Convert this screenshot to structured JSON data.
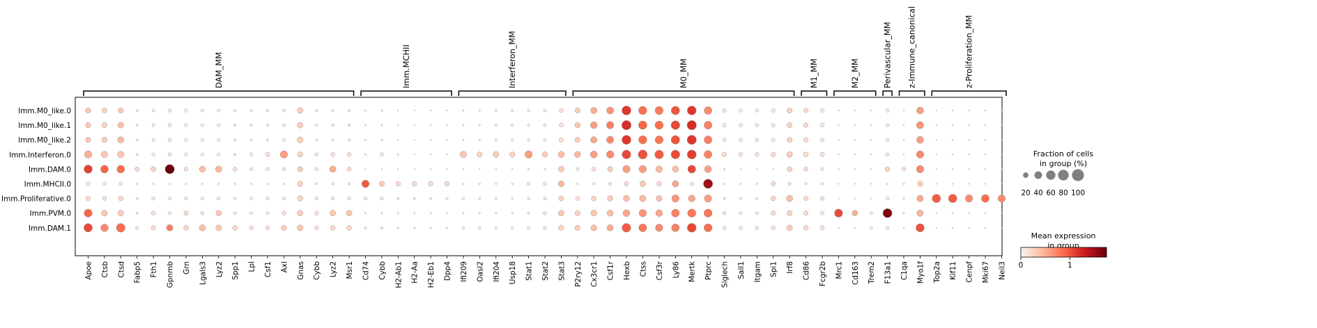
{
  "chart_data": {
    "type": "dotplot",
    "groups": [
      "Imm.M0_like.0",
      "Imm.M0_like.1",
      "Imm.M0_like.2",
      "Imm.Interferon.0",
      "Imm.DAM.0",
      "Imm.MHCII.0",
      "Imm.Proliferative.0",
      "Imm.PVM.0",
      "Imm.DAM.1"
    ],
    "genes": [
      "Apoe",
      "Ctsb",
      "Ctsd",
      "Fabp5",
      "Fth1",
      "Gpnmb",
      "Grn",
      "Lgals3",
      "Lyz2",
      "Spp1",
      "Lpl",
      "Csf1",
      "Axl",
      "Gnas",
      "Cybb",
      "Lyz2",
      "Msr1",
      "Cd74",
      "Cybb",
      "H2-Ab1",
      "H2-Aa",
      "H2-Eb1",
      "Dpp4",
      "Ifi209",
      "Oasl2",
      "Ifi204",
      "Usp18",
      "Stat1",
      "Stat2",
      "Stat3",
      "P2ry12",
      "Cx3cr1",
      "Csf1r",
      "Hexb",
      "Ctss",
      "Csf3r",
      "Ly86",
      "Mertk",
      "Ptprc",
      "Siglech",
      "Sall1",
      "Itgam",
      "Spi1",
      "Irf8",
      "Cd86",
      "Fcgr2b",
      "Mrc1",
      "Cd163",
      "Trem2",
      "F13a1",
      "C1qa",
      "Myo1f",
      "Top2a",
      "Kif11",
      "Cenpf",
      "Mki67",
      "Neil3"
    ],
    "gene_groups": [
      {
        "label": "DAM_MM",
        "start": 0,
        "end": 16
      },
      {
        "label": "Imm.MCHII",
        "start": 17,
        "end": 22
      },
      {
        "label": "Interferon_MM",
        "start": 23,
        "end": 29
      },
      {
        "label": "M0_MM",
        "start": 30,
        "end": 43
      },
      {
        "label": "M1_MM",
        "start": 44,
        "end": 45
      },
      {
        "label": "M2_MM",
        "start": 46,
        "end": 48
      },
      {
        "label": "Perivascular_MM",
        "start": 49,
        "end": 49
      },
      {
        "label": "z-Immune_canonical",
        "start": 50,
        "end": 51
      },
      {
        "label": "z-Proliferation_MM",
        "start": 52,
        "end": 56
      }
    ],
    "size_values": [
      [
        20,
        18,
        20,
        4,
        6,
        8,
        8,
        6,
        6,
        4,
        4,
        4,
        6,
        24,
        4,
        4,
        4,
        2,
        2,
        1,
        1,
        1,
        1,
        2,
        2,
        4,
        4,
        4,
        6,
        12,
        20,
        30,
        36,
        60,
        50,
        48,
        52,
        58,
        44,
        10,
        8,
        8,
        10,
        20,
        14,
        10,
        1,
        1,
        1,
        8,
        1,
        36,
        1,
        1,
        1,
        1,
        1
      ],
      [
        20,
        20,
        24,
        4,
        6,
        8,
        8,
        6,
        6,
        4,
        4,
        4,
        6,
        24,
        4,
        4,
        4,
        2,
        2,
        1,
        1,
        1,
        1,
        2,
        2,
        4,
        4,
        4,
        6,
        12,
        22,
        34,
        40,
        64,
        52,
        50,
        56,
        64,
        46,
        10,
        8,
        8,
        10,
        20,
        16,
        12,
        1,
        1,
        1,
        8,
        1,
        38,
        1,
        1,
        1,
        1,
        1
      ],
      [
        20,
        22,
        28,
        4,
        6,
        8,
        8,
        6,
        6,
        4,
        4,
        4,
        6,
        26,
        4,
        4,
        4,
        2,
        2,
        1,
        1,
        1,
        1,
        2,
        2,
        4,
        4,
        4,
        6,
        14,
        20,
        30,
        38,
        60,
        50,
        48,
        54,
        62,
        46,
        10,
        8,
        8,
        10,
        20,
        14,
        10,
        1,
        1,
        1,
        8,
        1,
        36,
        1,
        1,
        1,
        1,
        1
      ],
      [
        40,
        30,
        30,
        4,
        8,
        8,
        8,
        6,
        6,
        4,
        8,
        14,
        40,
        20,
        8,
        12,
        12,
        2,
        10,
        2,
        1,
        1,
        1,
        30,
        20,
        24,
        20,
        40,
        22,
        30,
        28,
        36,
        40,
        56,
        60,
        56,
        56,
        60,
        46,
        16,
        12,
        12,
        16,
        24,
        18,
        14,
        1,
        1,
        1,
        8,
        1,
        40,
        1,
        1,
        1,
        1,
        1
      ],
      [
        50,
        44,
        44,
        14,
        18,
        62,
        12,
        28,
        30,
        12,
        8,
        8,
        8,
        20,
        8,
        30,
        12,
        1,
        1,
        1,
        1,
        1,
        1,
        1,
        1,
        1,
        1,
        2,
        2,
        24,
        6,
        12,
        20,
        40,
        40,
        32,
        30,
        46,
        36,
        2,
        1,
        1,
        1,
        18,
        12,
        6,
        1,
        1,
        1,
        16,
        10,
        40,
        1,
        1,
        1,
        1,
        1
      ],
      [
        10,
        8,
        8,
        2,
        2,
        2,
        2,
        2,
        2,
        2,
        2,
        2,
        2,
        20,
        4,
        4,
        4,
        40,
        20,
        16,
        16,
        16,
        16,
        2,
        2,
        2,
        2,
        6,
        8,
        26,
        2,
        4,
        6,
        14,
        24,
        16,
        30,
        10,
        62,
        2,
        2,
        2,
        14,
        6,
        4,
        4,
        1,
        1,
        1,
        2,
        2,
        20,
        1,
        1,
        1,
        1,
        1
      ],
      [
        14,
        12,
        16,
        4,
        8,
        6,
        8,
        6,
        8,
        4,
        6,
        8,
        8,
        22,
        8,
        8,
        8,
        8,
        8,
        4,
        4,
        4,
        4,
        4,
        4,
        4,
        2,
        4,
        6,
        18,
        12,
        18,
        22,
        28,
        30,
        26,
        40,
        34,
        40,
        4,
        4,
        4,
        16,
        30,
        14,
        10,
        1,
        1,
        1,
        8,
        2,
        30,
        52,
        52,
        40,
        44,
        40
      ],
      [
        46,
        26,
        24,
        4,
        12,
        8,
        14,
        8,
        22,
        6,
        6,
        6,
        12,
        24,
        12,
        24,
        24,
        2,
        2,
        2,
        2,
        2,
        1,
        2,
        2,
        2,
        2,
        4,
        8,
        24,
        20,
        26,
        28,
        34,
        40,
        34,
        46,
        50,
        48,
        8,
        6,
        6,
        14,
        20,
        14,
        10,
        48,
        22,
        6,
        60,
        2,
        30,
        1,
        1,
        1,
        1,
        1
      ],
      [
        52,
        42,
        56,
        8,
        14,
        30,
        16,
        28,
        24,
        16,
        12,
        12,
        20,
        26,
        12,
        16,
        16,
        4,
        4,
        2,
        2,
        2,
        2,
        4,
        4,
        4,
        4,
        6,
        8,
        20,
        20,
        26,
        30,
        56,
        46,
        40,
        44,
        58,
        48,
        10,
        8,
        8,
        12,
        24,
        16,
        12,
        1,
        1,
        6,
        8,
        1,
        50,
        1,
        1,
        1,
        1,
        1
      ]
    ],
    "expression_values": [
      [
        0.35,
        0.25,
        0.35,
        0.05,
        0.05,
        0.1,
        0.05,
        0.05,
        0.05,
        0.05,
        0.05,
        0.05,
        0.05,
        0.3,
        0.05,
        0.05,
        0.05,
        0,
        0,
        0,
        0,
        0,
        0,
        0,
        0,
        0,
        0,
        0,
        0.05,
        0.15,
        0.3,
        0.5,
        0.65,
        1.15,
        0.85,
        0.8,
        1,
        1.15,
        0.7,
        0.1,
        0.1,
        0.1,
        0.1,
        0.25,
        0.2,
        0.1,
        0,
        0,
        0,
        0.1,
        0,
        0.6,
        0,
        0,
        0,
        0,
        0
      ],
      [
        0.35,
        0.25,
        0.4,
        0.05,
        0.05,
        0.1,
        0.05,
        0.05,
        0.05,
        0.05,
        0.05,
        0.05,
        0.05,
        0.3,
        0.05,
        0.05,
        0.05,
        0,
        0,
        0,
        0,
        0,
        0,
        0,
        0,
        0,
        0,
        0,
        0.05,
        0.15,
        0.35,
        0.6,
        0.75,
        1.2,
        0.9,
        0.85,
        1.05,
        1.2,
        0.75,
        0.1,
        0.1,
        0.1,
        0.1,
        0.25,
        0.2,
        0.1,
        0,
        0,
        0,
        0.1,
        0,
        0.65,
        0,
        0,
        0,
        0,
        0
      ],
      [
        0.35,
        0.3,
        0.45,
        0.05,
        0.05,
        0.1,
        0.05,
        0.05,
        0.05,
        0.05,
        0.05,
        0.05,
        0.05,
        0.3,
        0.05,
        0.05,
        0.05,
        0,
        0,
        0,
        0,
        0,
        0,
        0,
        0,
        0,
        0,
        0,
        0.05,
        0.15,
        0.3,
        0.55,
        0.7,
        1.15,
        0.85,
        0.8,
        1,
        1.15,
        0.75,
        0.1,
        0.1,
        0.1,
        0.1,
        0.25,
        0.2,
        0.1,
        0,
        0,
        0,
        0.1,
        0,
        0.6,
        0,
        0,
        0,
        0,
        0
      ],
      [
        0.5,
        0.35,
        0.35,
        0.05,
        0.05,
        0.1,
        0.05,
        0.05,
        0.05,
        0.05,
        0.05,
        0.15,
        0.6,
        0.25,
        0.1,
        0.15,
        0.15,
        0,
        0.1,
        0,
        0,
        0,
        0,
        0.35,
        0.25,
        0.3,
        0.25,
        0.6,
        0.3,
        0.4,
        0.45,
        0.6,
        0.7,
        1.05,
        1,
        0.95,
        1.05,
        1.1,
        0.75,
        0.2,
        0.15,
        0.15,
        0.2,
        0.3,
        0.2,
        0.15,
        0,
        0,
        0,
        0.1,
        0,
        0.7,
        0,
        0,
        0,
        0,
        0
      ],
      [
        1.1,
        0.9,
        0.85,
        0.2,
        0.25,
        1.75,
        0.15,
        0.4,
        0.45,
        0.15,
        0.1,
        0.1,
        0.1,
        0.3,
        0.1,
        0.5,
        0.2,
        0,
        0,
        0,
        0,
        0,
        0,
        0,
        0,
        0,
        0,
        0,
        0,
        0.3,
        0.1,
        0.15,
        0.3,
        0.6,
        0.6,
        0.45,
        0.4,
        1.05,
        0.6,
        0,
        0,
        0,
        0,
        0.25,
        0.2,
        0.1,
        0,
        0,
        0,
        0.25,
        0.15,
        0.7,
        0,
        0,
        0,
        0,
        0
      ],
      [
        0.1,
        0.1,
        0.1,
        0,
        0,
        0,
        0,
        0,
        0,
        0,
        0,
        0,
        0,
        0.25,
        0.05,
        0.05,
        0.05,
        0.95,
        0.3,
        0.2,
        0.2,
        0.2,
        0.2,
        0,
        0,
        0,
        0,
        0.1,
        0.1,
        0.45,
        0,
        0.05,
        0.1,
        0.2,
        0.35,
        0.2,
        0.55,
        0.1,
        1.5,
        0,
        0,
        0,
        0.2,
        0.1,
        0.05,
        0.05,
        0,
        0,
        0,
        0,
        0,
        0.3,
        0,
        0,
        0,
        0,
        0
      ],
      [
        0.2,
        0.15,
        0.2,
        0.05,
        0.1,
        0.05,
        0.1,
        0.05,
        0.1,
        0.05,
        0.05,
        0.1,
        0.1,
        0.25,
        0.1,
        0.1,
        0.1,
        0.1,
        0.1,
        0.05,
        0.05,
        0.05,
        0.05,
        0.05,
        0.05,
        0.05,
        0,
        0.05,
        0.1,
        0.25,
        0.15,
        0.25,
        0.3,
        0.4,
        0.45,
        0.4,
        0.65,
        0.55,
        0.6,
        0.05,
        0.05,
        0.05,
        0.25,
        0.4,
        0.2,
        0.15,
        0,
        0,
        0,
        0.1,
        0,
        0.55,
        0.95,
        0.95,
        0.7,
        0.85,
        0.7
      ],
      [
        0.9,
        0.35,
        0.3,
        0.05,
        0.15,
        0.1,
        0.2,
        0.1,
        0.35,
        0.05,
        0.05,
        0.05,
        0.15,
        0.3,
        0.15,
        0.35,
        0.35,
        0,
        0,
        0,
        0,
        0,
        0,
        0,
        0,
        0,
        0,
        0.05,
        0.1,
        0.35,
        0.25,
        0.35,
        0.4,
        0.55,
        0.65,
        0.55,
        0.75,
        0.8,
        0.8,
        0.1,
        0.05,
        0.05,
        0.2,
        0.25,
        0.2,
        0.1,
        1.05,
        0.5,
        0.05,
        1.65,
        0,
        0.45,
        0,
        0,
        0,
        0,
        0
      ],
      [
        1.05,
        0.7,
        0.85,
        0.1,
        0.2,
        0.75,
        0.25,
        0.4,
        0.35,
        0.2,
        0.15,
        0.15,
        0.3,
        0.35,
        0.15,
        0.2,
        0.2,
        0.05,
        0.05,
        0,
        0,
        0,
        0,
        0.05,
        0.05,
        0.05,
        0.05,
        0.05,
        0.1,
        0.25,
        0.3,
        0.4,
        0.5,
        0.95,
        0.8,
        0.7,
        0.75,
        1.05,
        0.85,
        0.1,
        0.1,
        0.1,
        0.15,
        0.3,
        0.2,
        0.15,
        0,
        0,
        0.05,
        0.1,
        0,
        1,
        0,
        0,
        0,
        0,
        0
      ]
    ],
    "size_legend": {
      "title_line1": "Fraction of cells",
      "title_line2": "in group (%)",
      "values": [
        20,
        40,
        60,
        80,
        100
      ],
      "labels": [
        "20",
        "40",
        "60",
        "80",
        "100"
      ]
    },
    "color_legend": {
      "title_line1": "Mean expression",
      "title_line2": "in group",
      "range": [
        0,
        1.75
      ],
      "tick_values": [
        0,
        1
      ],
      "tick_labels": [
        "0",
        "1"
      ]
    }
  }
}
